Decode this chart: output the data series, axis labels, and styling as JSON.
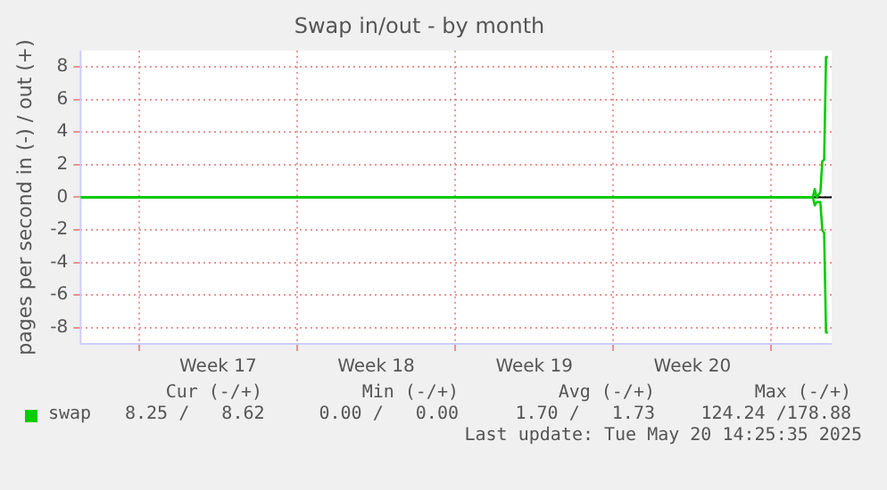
{
  "chart_data": {
    "type": "line",
    "title": "Swap in/out - by month",
    "ylabel": "pages per second in (-) / out (+)",
    "x": [
      "2025-04-18T10:00",
      "2025-05-20T20:00",
      "2025-05-20T22:00",
      "2025-05-21T00:00",
      "2025-05-21T04:00",
      "2025-05-21T06:00",
      "2025-05-21T08:00",
      "2025-05-21T10:00",
      "2025-05-21T12:00"
    ],
    "series": [
      {
        "color": "#00cc00",
        "values": [
          0,
          0,
          -0.5,
          -0.3,
          -0.3,
          -2.0,
          -2.2,
          -8.3,
          -8.3
        ]
      },
      {
        "name": "swap",
        "color": "#00cc00",
        "values": [
          0,
          0,
          0.5,
          0,
          0.3,
          2.2,
          2.3,
          8.6,
          8.6
        ]
      }
    ],
    "xlim": [
      "2025-04-18T10:00",
      "2025-05-21T16:00"
    ],
    "xticks": [
      {
        "value": "2025-04-21",
        "label": null
      },
      {
        "value": "2025-04-24T12:00",
        "label": "Week 17"
      },
      {
        "value": "2025-04-28",
        "label": null
      },
      {
        "value": "2025-05-01T12:00",
        "label": "Week 18"
      },
      {
        "value": "2025-05-05",
        "label": null
      },
      {
        "value": "2025-05-08T12:00",
        "label": "Week 19"
      },
      {
        "value": "2025-05-12",
        "label": null
      },
      {
        "value": "2025-05-15T12:00",
        "label": "Week 20"
      },
      {
        "value": "2025-05-19",
        "label": null
      }
    ],
    "ylim": [
      -9,
      9
    ],
    "yticks": [
      -8,
      -6,
      -4,
      -2,
      0,
      2,
      4,
      6,
      8
    ],
    "grid": true,
    "legend": "bottom",
    "marker": "none",
    "line_style": "solid",
    "ref_lines": [
      {
        "axis": "y",
        "value": 0,
        "color": "#000000"
      }
    ],
    "annotations": [
      "Cur (-/+)",
      "Min (-/+)",
      "Avg (-/+)",
      "Max (-/+)",
      "8.25 /   8.62",
      "0.00 /   0.00",
      "1.70 /   1.73",
      "124.24 /178.88",
      "Last update: Tue May 20 14:25:35 2025"
    ]
  }
}
